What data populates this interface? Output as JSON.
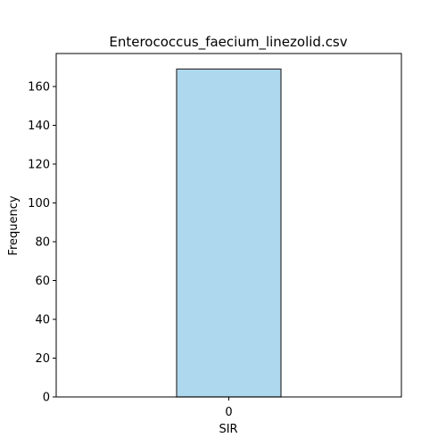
{
  "chart_data": {
    "type": "bar",
    "title": "Enterococcus_faecium_linezolid.csv",
    "xlabel": "SIR",
    "ylabel": "Frequency",
    "categories": [
      "0"
    ],
    "values": [
      169
    ],
    "ylim": [
      0,
      177
    ],
    "yticks": [
      0,
      20,
      40,
      60,
      80,
      100,
      120,
      140,
      160
    ],
    "grid": false,
    "legend": "none",
    "colors": {
      "bar_fill": "#add8ee",
      "bar_edge": "#333333",
      "axes": "#000000"
    }
  }
}
